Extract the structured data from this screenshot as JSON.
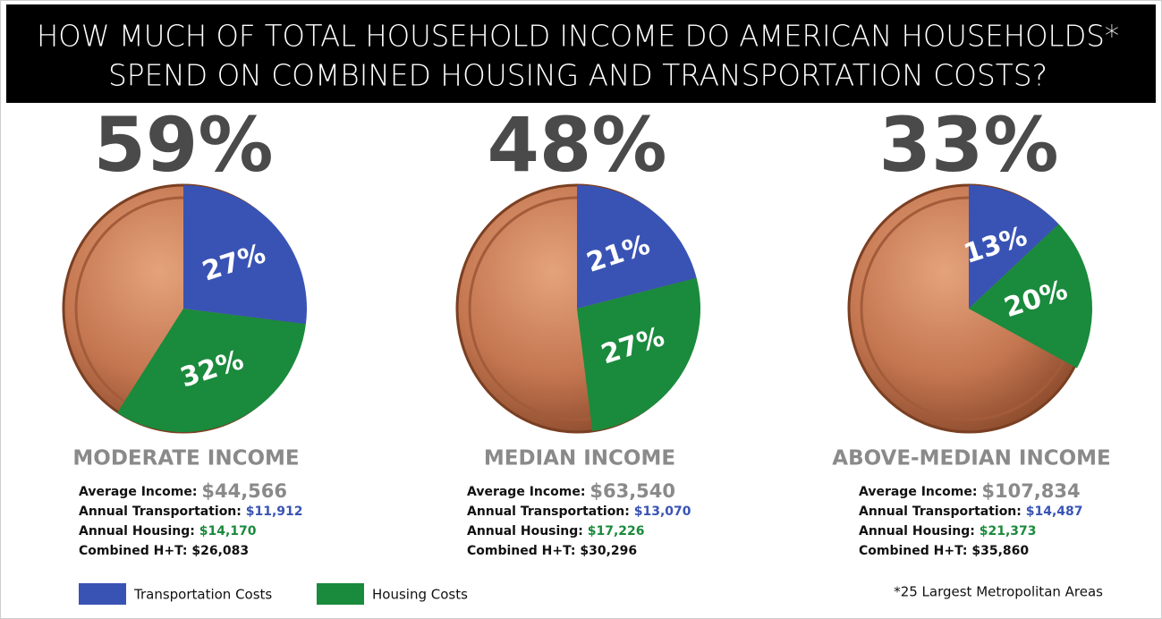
{
  "header": {
    "title_lines": [
      "HOW MUCH OF TOTAL HOUSEHOLD INCOME DO AMERICAN HOUSEHOLDS*",
      "SPEND ON COMBINED HOUSING AND TRANSPORTATION COSTS?"
    ]
  },
  "legend": [
    {
      "name": "Transportation Costs",
      "color": "#3953b5"
    },
    {
      "name": "Housing Costs",
      "color": "#1a8a3c"
    }
  ],
  "footnote": "*25 Largest Metropolitan Areas",
  "chart_data": [
    {
      "type": "pie",
      "title": "59%",
      "subtitle": "MODERATE INCOME",
      "values": [
        27,
        32
      ],
      "value_labels": [
        "27%",
        "32%"
      ],
      "details": [
        {
          "label": "Average Income:",
          "value": "$44,566"
        },
        {
          "label": "Annual Transportation:",
          "value": "$11,912"
        },
        {
          "label": "Annual Housing:",
          "value": "$14,170"
        },
        {
          "label": "Combined H+T:",
          "value": "$26,083"
        }
      ]
    },
    {
      "type": "pie",
      "title": "48%",
      "subtitle": "MEDIAN INCOME",
      "values": [
        21,
        27
      ],
      "value_labels": [
        "21%",
        "27%"
      ],
      "details": [
        {
          "label": "Average Income:",
          "value": "$63,540"
        },
        {
          "label": "Annual Transportation:",
          "value": "$13,070"
        },
        {
          "label": "Annual Housing:",
          "value": "$17,226"
        },
        {
          "label": "Combined H+T:",
          "value": "$30,296"
        }
      ]
    },
    {
      "type": "pie",
      "title": "33%",
      "subtitle": "ABOVE-MEDIAN  INCOME",
      "values": [
        13,
        20
      ],
      "value_labels": [
        "13%",
        "20%"
      ],
      "details": [
        {
          "label": "Average Income:",
          "value": "$107,834"
        },
        {
          "label": "Annual Transportation:",
          "value": "$14,487"
        },
        {
          "label": "Annual Housing:",
          "value": "$21,373"
        },
        {
          "label": "Combined H+T:",
          "value": "$35,860"
        }
      ]
    }
  ]
}
